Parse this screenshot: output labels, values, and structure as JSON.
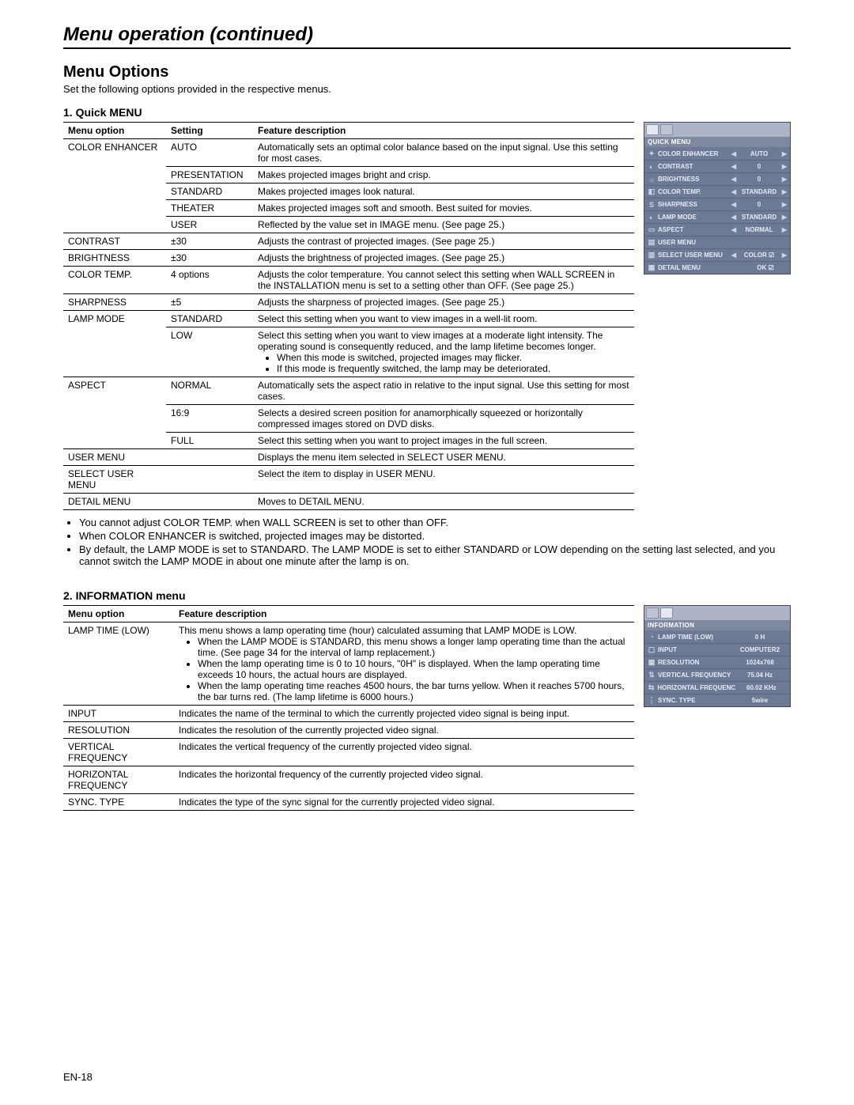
{
  "page": {
    "title": "Menu operation (continued)",
    "heading": "Menu Options",
    "intro": "Set the following options provided in the respective menus.",
    "footer": "EN-18"
  },
  "quick_menu": {
    "heading": "1. Quick MENU",
    "columns": [
      "Menu option",
      "Setting",
      "Feature description"
    ],
    "rows": [
      {
        "option": "COLOR ENHANCER",
        "option_rowspan": 5,
        "setting": "AUTO",
        "desc": "Automatically sets an optimal color balance based on the input signal. Use this setting for most cases."
      },
      {
        "setting": "PRESENTATION",
        "desc": "Makes projected images bright and crisp."
      },
      {
        "setting": "STANDARD",
        "desc": "Makes projected images look natural."
      },
      {
        "setting": "THEATER",
        "desc": "Makes projected images soft and smooth. Best suited for movies."
      },
      {
        "setting": "USER",
        "desc": "Reflected by the value set in IMAGE menu. (See page 25.)"
      },
      {
        "option": "CONTRAST",
        "setting": "±30",
        "desc": "Adjusts the contrast of projected images. (See page 25.)"
      },
      {
        "option": "BRIGHTNESS",
        "setting": "±30",
        "desc": "Adjusts the brightness of projected images. (See page 25.)"
      },
      {
        "option": "COLOR TEMP.",
        "setting": "4 options",
        "desc": "Adjusts the color temperature. You cannot select this setting when WALL SCREEN in the INSTALLATION menu is set to a setting other than OFF. (See page 25.)"
      },
      {
        "option": "SHARPNESS",
        "setting": "±5",
        "desc": "Adjusts the sharpness of projected images. (See page 25.)"
      },
      {
        "option": "LAMP MODE",
        "option_rowspan": 2,
        "setting": "STANDARD",
        "desc": "Select this setting when you want to view images in a well-lit room."
      },
      {
        "setting": "LOW",
        "desc": "Select this setting when you want to view images at a moderate light intensity. The operating sound is consequently reduced, and the lamp lifetime becomes longer.",
        "desc_bullets": [
          "When this mode is switched, projected images may flicker.",
          "If this mode is frequently switched, the lamp may be deteriorated."
        ]
      },
      {
        "option": "ASPECT",
        "option_rowspan": 3,
        "setting": "NORMAL",
        "desc": "Automatically sets the aspect ratio in relative to the input signal. Use this setting for most cases."
      },
      {
        "setting": "16:9",
        "desc": "Selects a desired screen position for anamorphically squeezed or horizontally compressed images stored on DVD disks."
      },
      {
        "setting": "FULL",
        "desc": "Select this setting when you want to project images in the full screen."
      },
      {
        "option": "USER MENU",
        "setting": "",
        "desc": "Displays the menu item selected in SELECT USER MENU."
      },
      {
        "option": "SELECT USER MENU",
        "setting": "",
        "desc": "Select the item to display in USER MENU."
      },
      {
        "option": "DETAIL MENU",
        "setting": "",
        "desc": "Moves to DETAIL MENU."
      }
    ],
    "notes": [
      "You cannot adjust COLOR TEMP. when WALL SCREEN is set to other than OFF.",
      "When COLOR ENHANCER is switched, projected images may be distorted.",
      "By default, the LAMP MODE is set to STANDARD. The LAMP MODE is set to either STANDARD or LOW depending on the setting last selected, and you cannot switch the LAMP MODE in about one minute after the lamp is on."
    ],
    "osd": {
      "title": "QUICK MENU",
      "items": [
        {
          "icon": "✦",
          "label": "COLOR ENHANCER",
          "value": "AUTO",
          "arrows": true
        },
        {
          "icon": "◐",
          "label": "CONTRAST",
          "value": "0",
          "arrows": true
        },
        {
          "icon": "☼",
          "label": "BRIGHTNESS",
          "value": "0",
          "arrows": true
        },
        {
          "icon": "◧",
          "label": "COLOR TEMP.",
          "value": "STANDARD",
          "arrows": true
        },
        {
          "icon": "S",
          "label": "SHARPNESS",
          "value": "0",
          "arrows": true
        },
        {
          "icon": "◐",
          "label": "LAMP MODE",
          "value": "STANDARD",
          "arrows": true
        },
        {
          "icon": "▭",
          "label": "ASPECT",
          "value": "NORMAL",
          "arrows": true
        },
        {
          "icon": "▤",
          "label": "USER MENU",
          "value": "",
          "arrows": false
        },
        {
          "icon": "▥",
          "label": "SELECT USER MENU",
          "value": "COLOR ☑",
          "arrows": true
        },
        {
          "icon": "▦",
          "label": "DETAIL MENU",
          "value": "OK ☑",
          "arrows": false,
          "ok": true
        }
      ]
    }
  },
  "info_menu": {
    "heading": "2. INFORMATION menu",
    "columns": [
      "Menu option",
      "Feature description"
    ],
    "rows": [
      {
        "option": "LAMP TIME (LOW)",
        "desc": "This menu shows a lamp operating time (hour) calculated assuming that LAMP MODE is LOW.",
        "desc_bullets": [
          "When the LAMP MODE is STANDARD, this menu shows a longer lamp operating time than the actual time. (See page 34 for the interval of lamp replacement.)",
          "When the lamp operating time is 0 to 10 hours, \"0H\" is displayed. When the lamp operating time exceeds 10 hours, the actual hours are displayed.",
          "When the lamp operating time reaches 4500 hours, the bar turns yellow. When it reaches 5700 hours, the bar turns red.  (The lamp lifetime is 6000 hours.)"
        ]
      },
      {
        "option": "INPUT",
        "desc": "Indicates the name of the terminal to which the currently projected video signal is being input."
      },
      {
        "option": "RESOLUTION",
        "desc": "Indicates the resolution of the currently projected video signal."
      },
      {
        "option": "VERTICAL FREQUENCY",
        "desc": "Indicates the vertical frequency of the currently projected video signal."
      },
      {
        "option": "HORIZONTAL FREQUENCY",
        "desc": "Indicates the horizontal frequency of the currently projected video signal."
      },
      {
        "option": "SYNC. TYPE",
        "desc": "Indicates the type of the sync signal for the currently projected video signal."
      }
    ],
    "osd": {
      "title": "INFORMATION",
      "items": [
        {
          "icon": "◔",
          "label": "LAMP TIME (LOW)",
          "value": "0 H"
        },
        {
          "icon": "▢",
          "label": "INPUT",
          "value": "COMPUTER2"
        },
        {
          "icon": "▦",
          "label": "RESOLUTION",
          "value": "1024x768"
        },
        {
          "icon": "⇅",
          "label": "VERTICAL FREQUENCY",
          "value": "75.04 Hz"
        },
        {
          "icon": "⇆",
          "label": "HORIZONTAL FREQUENCY",
          "value": "60.02 KHz"
        },
        {
          "icon": "⋮",
          "label": "SYNC. TYPE",
          "value": "5wire"
        }
      ]
    }
  },
  "colors": {
    "osd_bg": "#6d7a95",
    "osd_border": "#3f4860",
    "osd_tabbar": "#aeb4c7",
    "osd_title": "#7e889f",
    "table_border": "#000000"
  }
}
